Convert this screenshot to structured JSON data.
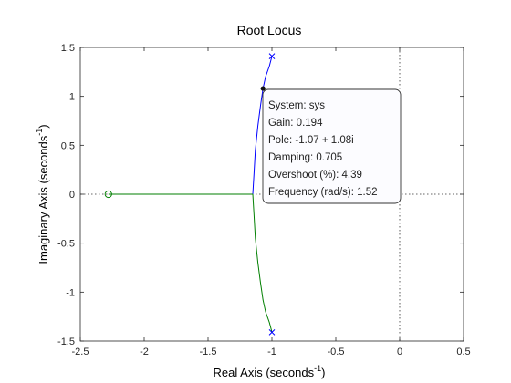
{
  "chart_data": {
    "type": "line",
    "title": "Root Locus",
    "xlabel": "Real Axis (seconds",
    "ylabel": "Imaginary Axis (seconds",
    "label_exponent": "-1",
    "xlim": [
      -2.5,
      0.5
    ],
    "ylim": [
      -1.5,
      1.5
    ],
    "xticks": [
      "-2.5",
      "-2",
      "-1.5",
      "-1",
      "-0.5",
      "0",
      "0.5"
    ],
    "yticks": [
      "1.5",
      "1",
      "0.5",
      "0",
      "-0.5",
      "-1",
      "-1.5"
    ],
    "grid": false,
    "series": [
      {
        "color": "#0000ff",
        "x": [
          -1.0,
          -1.02,
          -1.05,
          -1.07,
          -1.09,
          -1.11,
          -1.13,
          -1.14,
          -1.15
        ],
        "y": [
          1.41,
          1.31,
          1.2,
          1.08,
          0.9,
          0.7,
          0.45,
          0.22,
          0.0
        ]
      },
      {
        "color": "#007f00",
        "x": [
          -1.15,
          -1.14,
          -1.13,
          -1.11,
          -1.09,
          -1.07,
          -1.05,
          -1.02,
          -1.0
        ],
        "y": [
          0.0,
          -0.22,
          -0.45,
          -0.7,
          -0.9,
          -1.08,
          -1.2,
          -1.31,
          -1.41
        ]
      },
      {
        "color": "#007f00",
        "x": [
          -2.28,
          -1.15
        ],
        "y": [
          0.0,
          0.0
        ]
      }
    ],
    "poles": [
      {
        "x": -1.0,
        "y": 1.41,
        "color": "#0000ff"
      },
      {
        "x": -1.0,
        "y": -1.41,
        "color": "#0000ff"
      }
    ],
    "zeros": [
      {
        "x": -2.28,
        "y": 0.0,
        "color": "#007f00"
      }
    ],
    "datatip": {
      "marker": {
        "x": -1.07,
        "y": 1.08
      },
      "lines": [
        "System: sys",
        "Gain: 0.194",
        "Pole: -1.07 + 1.08i",
        "Damping: 0.705",
        "Overshoot (%): 4.39",
        "Frequency (rad/s): 1.52"
      ]
    }
  }
}
